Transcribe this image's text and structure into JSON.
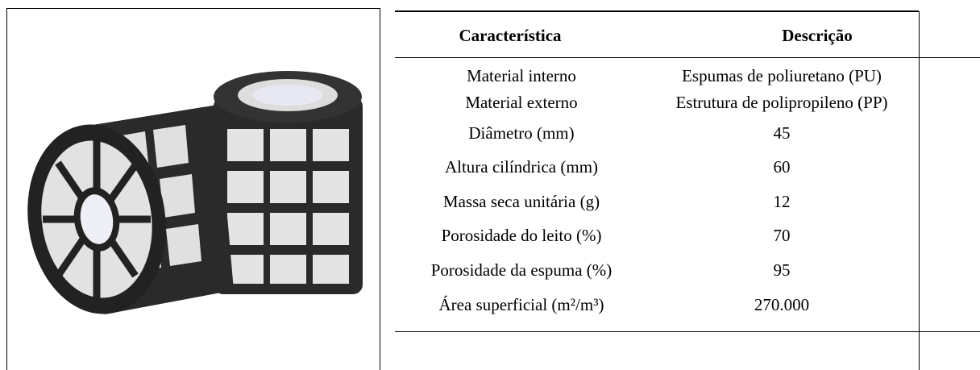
{
  "table": {
    "headers": [
      "Característica",
      "Descrição"
    ],
    "rows": [
      [
        "Material interno",
        "Espumas de poliuretano (PU)"
      ],
      [
        "Material externo",
        "Estrutura de polipropileno (PP)"
      ],
      [
        "Diâmetro (mm)",
        "45"
      ],
      [
        "Altura cilíndrica (mm)",
        "60"
      ],
      [
        "Massa seca unitária (g)",
        "12"
      ],
      [
        "Porosidade do leito (%)",
        "70"
      ],
      [
        "Porosidade da espuma (%)",
        "95"
      ],
      [
        "Área superficial (m²/m³)",
        "270.000"
      ]
    ]
  }
}
